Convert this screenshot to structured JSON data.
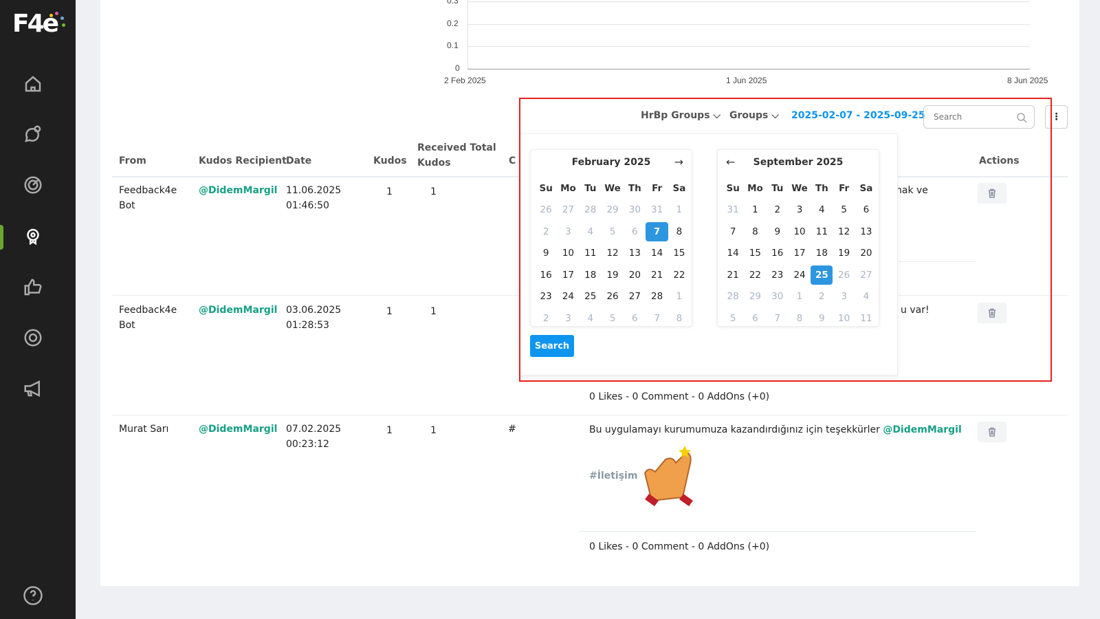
{
  "sidebar": {
    "logo": "F4e",
    "items": [
      "home",
      "conversation",
      "target",
      "kudos",
      "like",
      "settings",
      "announcement"
    ],
    "active": "kudos",
    "help": "help"
  },
  "chart_data": {
    "type": "line",
    "x_ticks": [
      "2 Feb 2025",
      "1 Jun 2025",
      "8 Jun 2025"
    ],
    "y_ticks": [
      "0",
      "0.1",
      "0.2",
      "0.3"
    ],
    "series": [],
    "grid": true
  },
  "filters": {
    "hrbp": "HrBp Groups",
    "groups": "Groups",
    "date_range": "2025-02-07 - 2025-09-25",
    "search_placeholder": "Search"
  },
  "table": {
    "headers": {
      "from": "From",
      "recipient": "Kudos Recipient",
      "date": "Date",
      "kudos": "Kudos",
      "received": "Received Total Kudos",
      "c": "C",
      "actions": "Actions"
    },
    "rows": [
      {
        "from": "Feedback4e Bot",
        "recipient": "@DidemMargil",
        "date": "11.06.2025",
        "time": "01:46:50",
        "kudos": "1",
        "received": "1",
        "message_fragment": "nak ve"
      },
      {
        "from": "Feedback4e Bot",
        "recipient": "@DidemMargil",
        "date": "03.06.2025",
        "time": "01:28:53",
        "kudos": "1",
        "received": "1",
        "message_fragment": "u var!",
        "stats": "0 Likes - 0 Comment - 0 AddOns (+0)"
      },
      {
        "from": "Murat Sarı",
        "recipient": "@DidemMargil",
        "date": "07.02.2025",
        "time": "00:23:12",
        "kudos": "1",
        "received": "1",
        "c": "#",
        "message": "Bu uygulamayı kurumumuza kazandırdığınız için teşekkürler",
        "mention": "@DidemMargil",
        "tag": "#İletişim",
        "stats": "0 Likes - 0 Comment - 0 AddOns (+0)"
      }
    ]
  },
  "datepicker": {
    "search_label": "Search",
    "dow": [
      "Su",
      "Mo",
      "Tu",
      "We",
      "Th",
      "Fr",
      "Sa"
    ],
    "left": {
      "title": "February 2025",
      "days": [
        "26",
        "27",
        "28",
        "29",
        "30",
        "31",
        "1",
        "2",
        "3",
        "4",
        "5",
        "6",
        "7",
        "8",
        "9",
        "10",
        "11",
        "12",
        "13",
        "14",
        "15",
        "16",
        "17",
        "18",
        "19",
        "20",
        "21",
        "22",
        "23",
        "24",
        "25",
        "26",
        "27",
        "28",
        "1",
        "2",
        "3",
        "4",
        "5",
        "6",
        "7",
        "8"
      ],
      "muted": [
        0,
        1,
        2,
        3,
        4,
        5,
        6,
        7,
        8,
        9,
        10,
        11,
        34,
        35,
        36,
        37,
        38,
        39,
        40,
        41
      ],
      "selected": 12
    },
    "right": {
      "title": "September 2025",
      "days": [
        "31",
        "1",
        "2",
        "3",
        "4",
        "5",
        "6",
        "7",
        "8",
        "9",
        "10",
        "11",
        "12",
        "13",
        "14",
        "15",
        "16",
        "17",
        "18",
        "19",
        "20",
        "21",
        "22",
        "23",
        "24",
        "25",
        "26",
        "27",
        "28",
        "29",
        "30",
        "1",
        "2",
        "3",
        "4",
        "5",
        "6",
        "7",
        "8",
        "9",
        "10",
        "11"
      ],
      "muted": [
        0,
        26,
        27,
        28,
        29,
        30,
        31,
        32,
        33,
        34,
        35,
        36,
        37,
        38,
        39,
        40,
        41
      ],
      "selected": 25
    }
  },
  "colors": {
    "accent": "#0d95f0",
    "mention": "#16a085",
    "sidebar": "#1f1f1f",
    "active_indicator": "#6aa72c"
  }
}
